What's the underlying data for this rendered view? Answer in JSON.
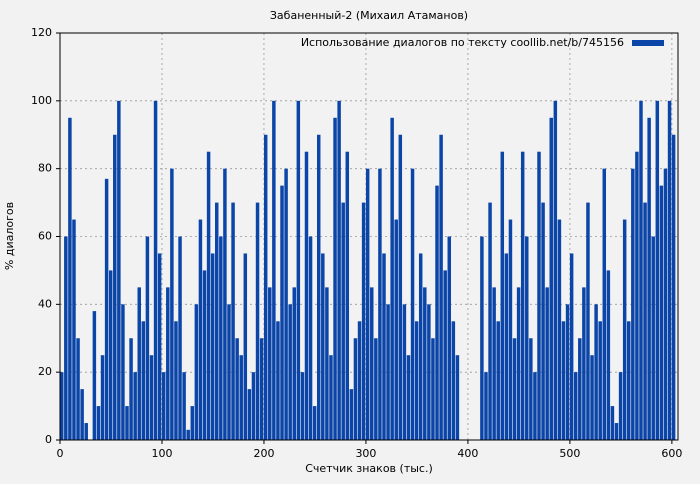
{
  "chart_data": {
    "type": "bar",
    "title": "Забаненный-2 (Михаил Атаманов)",
    "xlabel": "Счетчик знаков (тыс.)",
    "ylabel": "% диалогов",
    "legend_loc": "upper right",
    "grid": true,
    "xlim": [
      0,
      606
    ],
    "xticks": [
      0,
      100,
      200,
      300,
      400,
      500,
      600
    ],
    "ylim": [
      0,
      120
    ],
    "yticks": [
      0,
      20,
      40,
      60,
      80,
      100,
      120
    ],
    "x": [
      0,
      4,
      8,
      12,
      16,
      20,
      24,
      28,
      32,
      36,
      40,
      44,
      48,
      52,
      56,
      60,
      64,
      68,
      72,
      76,
      80,
      84,
      88,
      92,
      96,
      100,
      104,
      108,
      112,
      116,
      120,
      124,
      128,
      132,
      136,
      140,
      144,
      148,
      152,
      156,
      160,
      164,
      168,
      172,
      176,
      180,
      184,
      188,
      192,
      196,
      200,
      204,
      208,
      212,
      216,
      220,
      224,
      228,
      232,
      236,
      240,
      244,
      248,
      252,
      256,
      260,
      264,
      268,
      272,
      276,
      280,
      284,
      288,
      292,
      296,
      300,
      304,
      308,
      312,
      316,
      320,
      324,
      328,
      332,
      336,
      340,
      344,
      348,
      352,
      356,
      360,
      364,
      368,
      372,
      376,
      380,
      384,
      388,
      392,
      396,
      400,
      404,
      408,
      412,
      416,
      420,
      424,
      428,
      432,
      436,
      440,
      444,
      448,
      452,
      456,
      460,
      464,
      468,
      472,
      476,
      480,
      484,
      488,
      492,
      496,
      500,
      504,
      508,
      512,
      516,
      520,
      524,
      528,
      532,
      536,
      540,
      544,
      548,
      552,
      556,
      560,
      564,
      568,
      572,
      576,
      580,
      584,
      588,
      592,
      596,
      600
    ],
    "series": [
      {
        "name": "Использование диалогов по тексту coollib.net/b/745156",
        "color": "#0b45a8",
        "values": [
          20,
          60,
          95,
          65,
          30,
          15,
          5,
          0,
          38,
          10,
          25,
          77,
          50,
          90,
          100,
          40,
          10,
          30,
          20,
          45,
          35,
          60,
          25,
          100,
          55,
          20,
          45,
          80,
          35,
          60,
          20,
          3,
          10,
          40,
          65,
          50,
          85,
          55,
          70,
          60,
          80,
          40,
          70,
          30,
          25,
          55,
          15,
          20,
          70,
          30,
          90,
          45,
          100,
          35,
          75,
          80,
          40,
          45,
          100,
          20,
          85,
          60,
          10,
          90,
          55,
          45,
          25,
          95,
          100,
          70,
          85,
          15,
          30,
          35,
          70,
          80,
          45,
          30,
          80,
          55,
          40,
          95,
          65,
          90,
          40,
          25,
          80,
          35,
          55,
          45,
          40,
          30,
          75,
          90,
          50,
          60,
          35,
          25,
          0,
          0,
          0,
          0,
          0,
          60,
          20,
          70,
          45,
          35,
          85,
          55,
          65,
          30,
          45,
          85,
          60,
          30,
          20,
          85,
          70,
          45,
          95,
          100,
          65,
          35,
          40,
          55,
          20,
          30,
          45,
          70,
          25,
          40,
          35,
          80,
          50,
          10,
          5,
          20,
          65,
          35,
          80,
          85,
          100,
          70,
          95,
          60,
          100,
          75,
          80,
          100,
          90
        ]
      }
    ]
  }
}
